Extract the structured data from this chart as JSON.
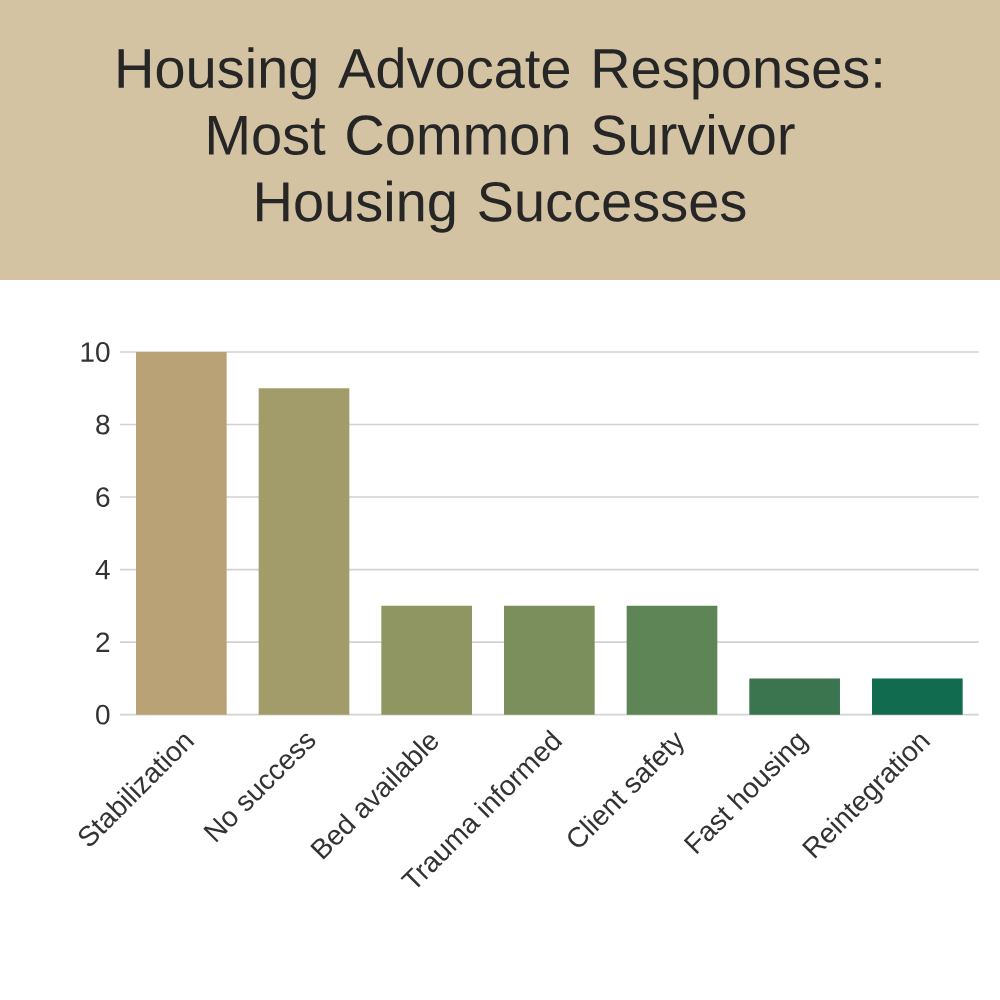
{
  "chart_data": {
    "type": "bar",
    "title": "Housing Advocate Responses: Most Common Survivor Housing Successes",
    "categories": [
      "Stabilization",
      "No success",
      "Bed available",
      "Trauma informed",
      "Client safety",
      "Fast housing",
      "Reintegration"
    ],
    "values": [
      10,
      9,
      3,
      3,
      3,
      1,
      1
    ],
    "colors": [
      "#b9a275",
      "#a29c6b",
      "#8f9662",
      "#7a8f5c",
      "#5e8555",
      "#3a7550",
      "#116b4f"
    ],
    "ylim": [
      0,
      10
    ],
    "yticks": [
      0,
      2,
      4,
      6,
      8,
      10
    ],
    "grid": "y"
  }
}
